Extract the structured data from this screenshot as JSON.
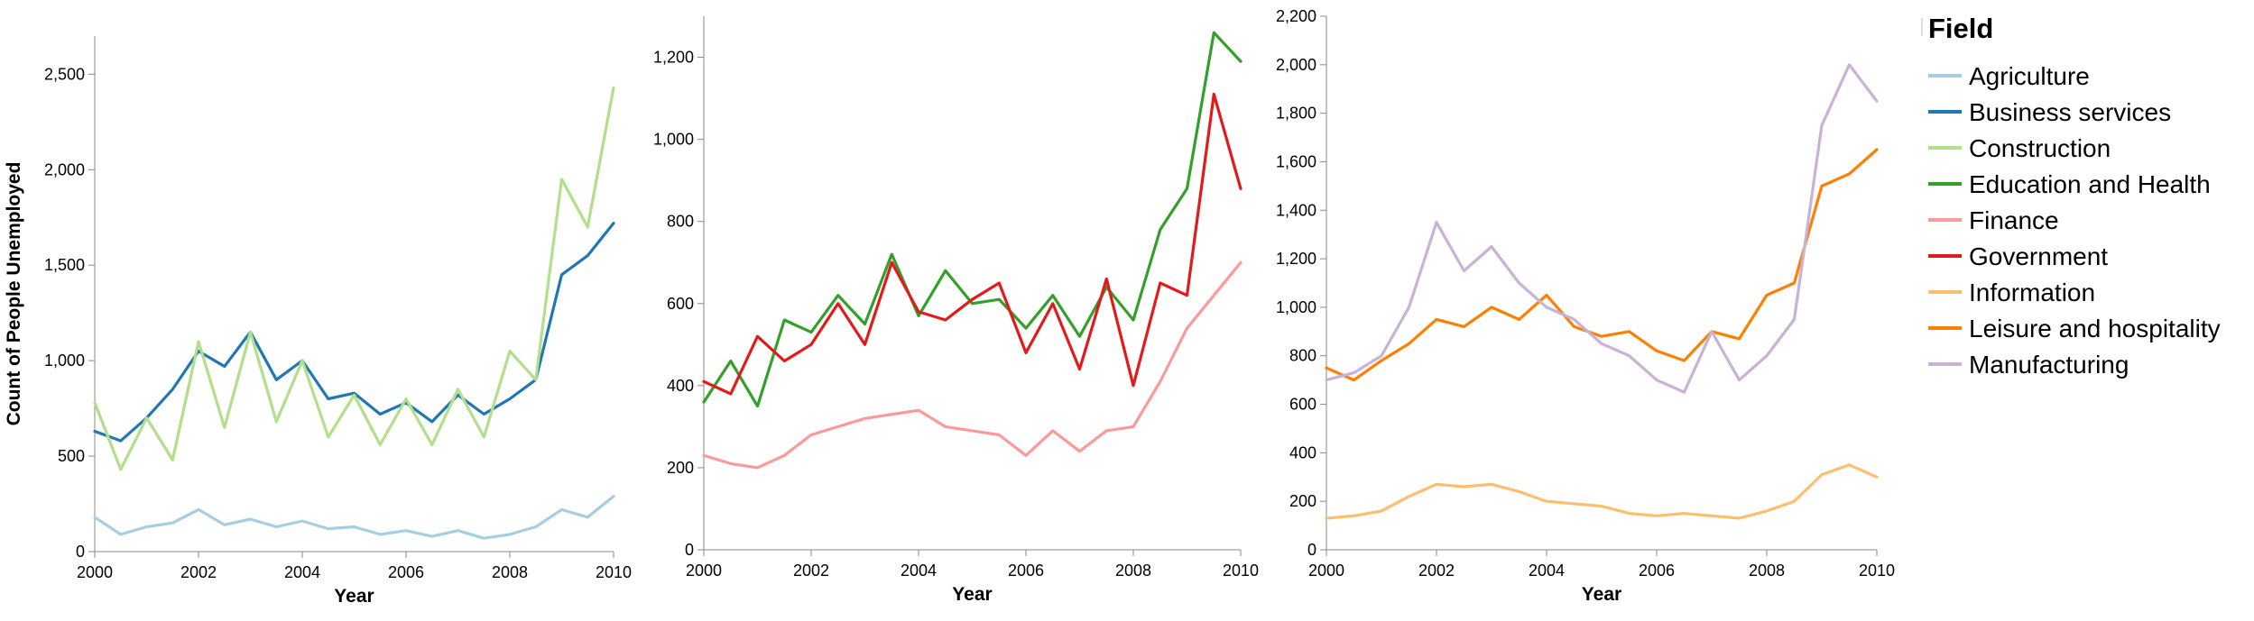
{
  "legend": {
    "title": "Field",
    "items": [
      {
        "label": "Agriculture",
        "color": "#a6cee3"
      },
      {
        "label": "Business services",
        "color": "#1f78b4"
      },
      {
        "label": "Construction",
        "color": "#b2df8a"
      },
      {
        "label": "Education and Health",
        "color": "#33a02c"
      },
      {
        "label": "Finance",
        "color": "#fb9a99"
      },
      {
        "label": "Government",
        "color": "#e31a1c"
      },
      {
        "label": "Information",
        "color": "#fdbf6f"
      },
      {
        "label": "Leisure and hospitality",
        "color": "#ff7f00"
      },
      {
        "label": "Manufacturing",
        "color": "#cab2d6"
      }
    ]
  },
  "chart_data": [
    {
      "type": "line",
      "xlabel": "Year",
      "ylabel": "Count of People Unemployed",
      "xlim": [
        2000,
        2010
      ],
      "ylim": [
        0,
        2700
      ],
      "x_ticks": [
        2000,
        2002,
        2004,
        2006,
        2008,
        2010
      ],
      "y_ticks": [
        0,
        500,
        1000,
        1500,
        2000,
        2500
      ],
      "x": [
        2000,
        2000.5,
        2001,
        2001.5,
        2002,
        2002.5,
        2003,
        2003.5,
        2004,
        2004.5,
        2005,
        2005.5,
        2006,
        2006.5,
        2007,
        2007.5,
        2008,
        2008.5,
        2009,
        2009.5,
        2010
      ],
      "series": [
        {
          "name": "Agriculture",
          "color": "#a6cee3",
          "values": [
            180,
            90,
            130,
            150,
            220,
            140,
            170,
            130,
            160,
            120,
            130,
            90,
            110,
            80,
            110,
            70,
            90,
            130,
            220,
            180,
            290
          ]
        },
        {
          "name": "Business services",
          "color": "#1f78b4",
          "values": [
            630,
            580,
            700,
            850,
            1050,
            970,
            1150,
            900,
            1000,
            800,
            830,
            720,
            780,
            680,
            820,
            720,
            800,
            900,
            1450,
            1550,
            1720
          ]
        },
        {
          "name": "Construction",
          "color": "#b2df8a",
          "values": [
            780,
            430,
            700,
            480,
            1100,
            650,
            1150,
            680,
            1000,
            600,
            820,
            560,
            800,
            560,
            850,
            600,
            1050,
            900,
            1950,
            1700,
            2430
          ]
        }
      ]
    },
    {
      "type": "line",
      "xlabel": "Year",
      "ylabel": "",
      "xlim": [
        2000,
        2010
      ],
      "ylim": [
        0,
        1300
      ],
      "x_ticks": [
        2000,
        2002,
        2004,
        2006,
        2008,
        2010
      ],
      "y_ticks": [
        0,
        200,
        400,
        600,
        800,
        1000,
        1200
      ],
      "x": [
        2000,
        2000.5,
        2001,
        2001.5,
        2002,
        2002.5,
        2003,
        2003.5,
        2004,
        2004.5,
        2005,
        2005.5,
        2006,
        2006.5,
        2007,
        2007.5,
        2008,
        2008.5,
        2009,
        2009.5,
        2010
      ],
      "series": [
        {
          "name": "Education and Health",
          "color": "#33a02c",
          "values": [
            360,
            460,
            350,
            560,
            530,
            620,
            550,
            720,
            570,
            680,
            600,
            610,
            540,
            620,
            520,
            640,
            560,
            780,
            880,
            1260,
            1190
          ]
        },
        {
          "name": "Finance",
          "color": "#fb9a99",
          "values": [
            230,
            210,
            200,
            230,
            280,
            300,
            320,
            330,
            340,
            300,
            290,
            280,
            230,
            290,
            240,
            290,
            300,
            410,
            540,
            620,
            700
          ]
        },
        {
          "name": "Government",
          "color": "#e31a1c",
          "values": [
            410,
            380,
            520,
            460,
            500,
            600,
            500,
            700,
            580,
            560,
            610,
            650,
            480,
            600,
            440,
            660,
            400,
            650,
            620,
            1110,
            880
          ]
        }
      ]
    },
    {
      "type": "line",
      "xlabel": "Year",
      "ylabel": "",
      "xlim": [
        2000,
        2010
      ],
      "ylim": [
        0,
        2200
      ],
      "x_ticks": [
        2000,
        2002,
        2004,
        2006,
        2008,
        2010
      ],
      "y_ticks": [
        0,
        200,
        400,
        600,
        800,
        1000,
        1200,
        1400,
        1600,
        1800,
        2000,
        2200
      ],
      "x": [
        2000,
        2000.5,
        2001,
        2001.5,
        2002,
        2002.5,
        2003,
        2003.5,
        2004,
        2004.5,
        2005,
        2005.5,
        2006,
        2006.5,
        2007,
        2007.5,
        2008,
        2008.5,
        2009,
        2009.5,
        2010
      ],
      "series": [
        {
          "name": "Information",
          "color": "#fdbf6f",
          "values": [
            130,
            140,
            160,
            220,
            270,
            260,
            270,
            240,
            200,
            190,
            180,
            150,
            140,
            150,
            140,
            130,
            160,
            200,
            310,
            350,
            300
          ]
        },
        {
          "name": "Leisure and hospitality",
          "color": "#ff7f00",
          "values": [
            750,
            700,
            780,
            850,
            950,
            920,
            1000,
            950,
            1050,
            920,
            880,
            900,
            820,
            780,
            900,
            870,
            1050,
            1100,
            1500,
            1550,
            1650
          ]
        },
        {
          "name": "Manufacturing",
          "color": "#cab2d6",
          "values": [
            700,
            730,
            800,
            1000,
            1350,
            1150,
            1250,
            1100,
            1000,
            950,
            850,
            800,
            700,
            650,
            900,
            700,
            800,
            950,
            1750,
            2000,
            1850
          ]
        }
      ]
    }
  ]
}
